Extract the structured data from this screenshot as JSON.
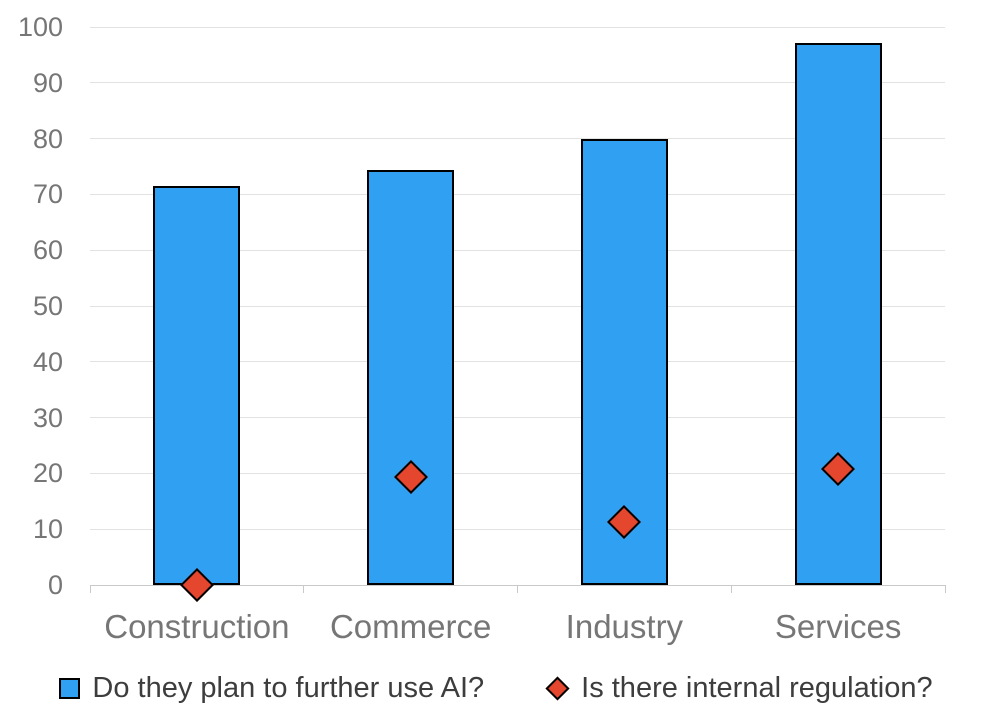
{
  "chart_data": {
    "type": "bar",
    "subtype": "bar-with-scatter-diamond-overlay",
    "title": "",
    "xlabel": "",
    "ylabel": "",
    "categories": [
      "Construction",
      "Commerce",
      "Industry",
      "Services"
    ],
    "series": [
      {
        "name": "Do they plan to further use AI?",
        "type": "bar",
        "marker": "square",
        "color": "#2fa0f2",
        "border_color": "#000000",
        "values": [
          71.5,
          74.3,
          80,
          97.2
        ]
      },
      {
        "name": "Is there internal regulation?",
        "type": "scatter",
        "marker": "diamond",
        "color": "#e5462e",
        "border_color": "#000000",
        "values": [
          0,
          19.3,
          11.3,
          20.7
        ]
      }
    ],
    "ylim": [
      0,
      100
    ],
    "yticks": [
      0,
      10,
      20,
      30,
      40,
      50,
      60,
      70,
      80,
      90,
      100
    ],
    "grid": true,
    "legend_position": "bottom",
    "colors": {
      "background": "#ffffff",
      "gridline": "#e2e2e2",
      "axis_line": "#c9c9c9",
      "axis_text": "#767676",
      "legend_text": "#3d3d3d"
    }
  }
}
